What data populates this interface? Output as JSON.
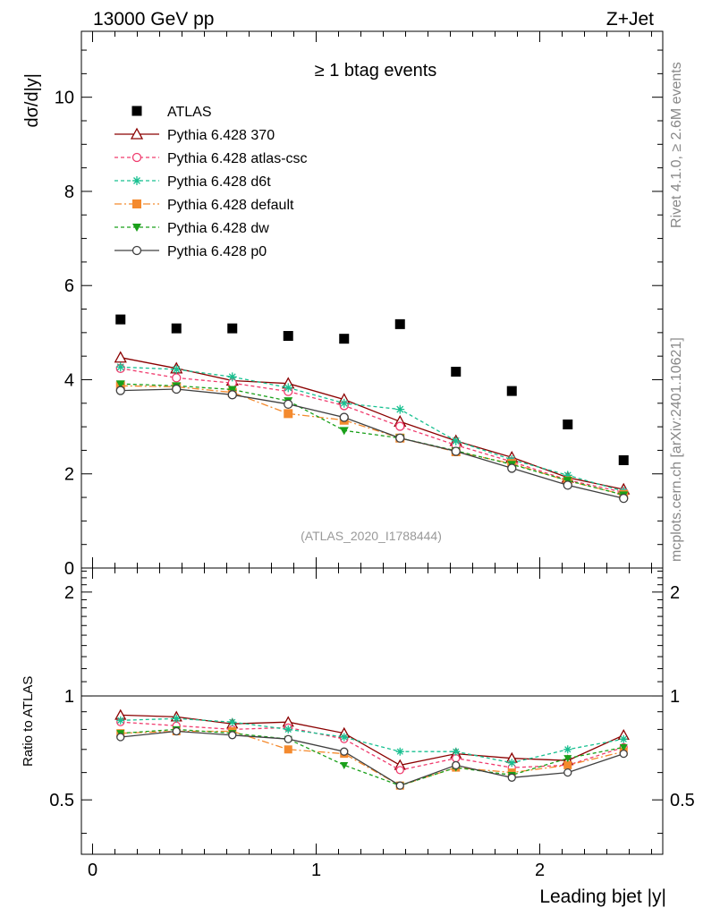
{
  "header": {
    "energy_label": "13000 GeV pp",
    "process_label": "Z+Jet"
  },
  "side_labels": {
    "rivet": "Rivet 4.1.0, ≥ 2.6M events",
    "source": "mcplots.cern.ch [arXiv:2401.10621]"
  },
  "chart_data": [
    {
      "type": "scatter",
      "panel": "main",
      "title": "≥ 1 btag events",
      "ylabel": "dσ/d|y|",
      "xlabel": "",
      "xlim": [
        -0.05,
        2.55
      ],
      "ylim": [
        0,
        11.4
      ],
      "yticks": [
        0,
        2,
        4,
        6,
        8,
        10
      ],
      "ytick_labels": [
        "0",
        "2",
        "4",
        "6",
        "8",
        "10"
      ],
      "analysis_label": "(ATLAS_2020_I1788444)",
      "x": [
        0.125,
        0.375,
        0.625,
        0.875,
        1.125,
        1.375,
        1.625,
        1.875,
        2.125,
        2.375
      ],
      "series": [
        {
          "name": "ATLAS",
          "color": "#000000",
          "marker": "square-filled",
          "dash": "none",
          "values": [
            5.28,
            5.09,
            5.09,
            4.93,
            4.87,
            5.18,
            4.17,
            3.76,
            3.05,
            2.29
          ]
        },
        {
          "name": "Pythia 6.428 370",
          "color": "#8b0000",
          "marker": "triangle-open",
          "dash": "solid",
          "values": [
            4.47,
            4.24,
            3.98,
            3.92,
            3.58,
            3.11,
            2.7,
            2.35,
            1.92,
            1.67
          ]
        },
        {
          "name": "Pythia 6.428 atlas-csc",
          "color": "#f03c6e",
          "marker": "circle-open",
          "dash": "4,3",
          "values": [
            4.24,
            4.04,
            3.93,
            3.75,
            3.45,
            3.01,
            2.61,
            2.26,
            1.87,
            1.61
          ]
        },
        {
          "name": "Pythia 6.428 d6t",
          "color": "#18c090",
          "marker": "star",
          "dash": "4,3",
          "values": [
            4.27,
            4.22,
            4.06,
            3.83,
            3.5,
            3.37,
            2.7,
            2.3,
            1.97,
            1.63
          ]
        },
        {
          "name": "Pythia 6.428 default",
          "color": "#f48a2e",
          "marker": "square-filled",
          "dash": "8,3,2,3",
          "values": [
            3.87,
            3.85,
            3.73,
            3.28,
            3.14,
            2.76,
            2.47,
            2.22,
            1.85,
            1.56
          ]
        },
        {
          "name": "Pythia 6.428 dw",
          "color": "#1aa01a",
          "marker": "triangle-down-filled",
          "dash": "4,3",
          "values": [
            3.91,
            3.87,
            3.79,
            3.55,
            2.92,
            2.76,
            2.49,
            2.2,
            1.86,
            1.55
          ]
        },
        {
          "name": "Pythia 6.428 p0",
          "color": "#404040",
          "marker": "circle-open",
          "dash": "solid",
          "values": [
            3.77,
            3.8,
            3.68,
            3.48,
            3.2,
            2.76,
            2.48,
            2.12,
            1.76,
            1.48
          ]
        }
      ]
    },
    {
      "type": "line",
      "panel": "ratio",
      "ylabel": "Ratio to ATLAS",
      "xlabel": "Leading bjet |y|",
      "xlim": [
        -0.05,
        2.55
      ],
      "ylim": [
        0.3478,
        2.3478
      ],
      "yscale": "log",
      "yticks": [
        0.5,
        1,
        2
      ],
      "ytick_labels": [
        "0.5",
        "1",
        "2"
      ],
      "xticks": [
        0,
        1,
        2
      ],
      "xtick_labels": [
        "0",
        "1",
        "2"
      ],
      "reference_line": 1,
      "x": [
        0.125,
        0.375,
        0.625,
        0.875,
        1.125,
        1.375,
        1.625,
        1.875,
        2.125,
        2.375
      ],
      "series": [
        {
          "name": "Pythia 6.428 370",
          "color": "#8b0000",
          "marker": "triangle-open",
          "dash": "solid",
          "values": [
            0.88,
            0.87,
            0.83,
            0.84,
            0.78,
            0.63,
            0.68,
            0.66,
            0.65,
            0.77
          ]
        },
        {
          "name": "Pythia 6.428 atlas-csc",
          "color": "#f03c6e",
          "marker": "circle-open",
          "dash": "4,3",
          "values": [
            0.84,
            0.82,
            0.8,
            0.81,
            0.75,
            0.61,
            0.66,
            0.62,
            0.63,
            0.71
          ]
        },
        {
          "name": "Pythia 6.428 d6t",
          "color": "#18c090",
          "marker": "star",
          "dash": "4,3",
          "values": [
            0.85,
            0.86,
            0.84,
            0.8,
            0.76,
            0.69,
            0.69,
            0.64,
            0.7,
            0.75
          ]
        },
        {
          "name": "Pythia 6.428 default",
          "color": "#f48a2e",
          "marker": "square-filled",
          "dash": "8,3,2,3",
          "values": [
            0.78,
            0.79,
            0.79,
            0.7,
            0.68,
            0.55,
            0.62,
            0.6,
            0.63,
            0.69
          ]
        },
        {
          "name": "Pythia 6.428 dw",
          "color": "#1aa01a",
          "marker": "triangle-down-filled",
          "dash": "4,3",
          "values": [
            0.78,
            0.8,
            0.78,
            0.75,
            0.63,
            0.55,
            0.62,
            0.59,
            0.66,
            0.71
          ]
        },
        {
          "name": "Pythia 6.428 p0",
          "color": "#404040",
          "marker": "circle-open",
          "dash": "solid",
          "values": [
            0.76,
            0.79,
            0.77,
            0.75,
            0.69,
            0.55,
            0.63,
            0.58,
            0.6,
            0.68
          ]
        }
      ]
    }
  ]
}
